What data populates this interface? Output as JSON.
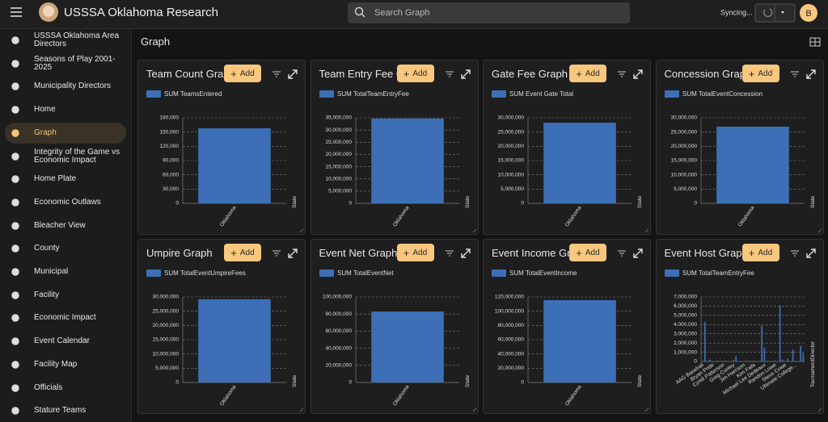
{
  "header": {
    "title": "USSSA Oklahoma Research",
    "search_placeholder": "Search Graph",
    "status": "Syncing...",
    "avatar": "B"
  },
  "sidebar": {
    "active": 4,
    "items": [
      "USSSA Oklahoma Area Directors",
      "Seasons of Play 2001-2025",
      "Municipality Directors",
      "Home",
      "Graph",
      "Integrity of the Game vs Economic Impact",
      "Home Plate",
      "Economic Outlaws",
      "Bleacher View",
      "County",
      "Municipal",
      "Facility",
      "Economic Impact",
      "Event Calendar",
      "Facility Map",
      "Officials",
      "Stature Teams"
    ]
  },
  "page": {
    "title": "Graph",
    "add_button": "Add"
  },
  "chart_data": [
    {
      "type": "bar",
      "title": "Team Count Graph",
      "categories": [
        "Oklahoma"
      ],
      "x_label": "State",
      "grid": true,
      "series": [
        {
          "name": "SUM TeamsEntered",
          "color": "#3d6fb6",
          "values": [
            158000
          ]
        }
      ],
      "ylim": [
        0,
        180000
      ],
      "yticks": [
        0,
        {
          "value": 30000,
          "label": "30,000"
        },
        {
          "value": 60000,
          "label": "60,000"
        },
        {
          "value": 90000,
          "label": "90,000"
        },
        {
          "value": 120000,
          "label": "120,000"
        },
        {
          "value": 150000,
          "label": "150,000"
        },
        {
          "value": 180000,
          "label": "180,000"
        }
      ]
    },
    {
      "type": "bar",
      "title": "Team Entry Fee Graph",
      "categories": [
        "Oklahoma"
      ],
      "x_label": "State",
      "grid": true,
      "series": [
        {
          "name": "SUM TotalTeamEntryFee",
          "color": "#3d6fb6",
          "values": [
            34700000
          ]
        }
      ],
      "ylim": [
        0,
        35000000
      ],
      "yticks": [
        0,
        {
          "value": 5000000,
          "label": "5,000,000"
        },
        {
          "value": 10000000,
          "label": "10,000,000"
        },
        {
          "value": 15000000,
          "label": "15,000,000"
        },
        {
          "value": 20000000,
          "label": "20,000,000"
        },
        {
          "value": 25000000,
          "label": "25,000,000"
        },
        {
          "value": 30000000,
          "label": "30,000,000"
        },
        {
          "value": 35000000,
          "label": "35,000,000"
        }
      ]
    },
    {
      "type": "bar",
      "title": "Gate Fee Graph",
      "categories": [
        "Oklahoma"
      ],
      "x_label": "State",
      "grid": true,
      "series": [
        {
          "name": "SUM Event Gate Total",
          "color": "#3d6fb6",
          "values": [
            28300000
          ]
        }
      ],
      "ylim": [
        0,
        30000000
      ],
      "yticks": [
        0,
        {
          "value": 5000000,
          "label": "5,000,000"
        },
        {
          "value": 10000000,
          "label": "10,000,000"
        },
        {
          "value": 15000000,
          "label": "15,000,000"
        },
        {
          "value": 20000000,
          "label": "20,000,000"
        },
        {
          "value": 25000000,
          "label": "25,000,000"
        },
        {
          "value": 30000000,
          "label": "30,000,000"
        }
      ]
    },
    {
      "type": "bar",
      "title": "Concession Graph",
      "categories": [
        "Oklahoma"
      ],
      "x_label": "State",
      "grid": true,
      "series": [
        {
          "name": "SUM TotalEventConcession",
          "color": "#3d6fb6",
          "values": [
            26900000
          ]
        }
      ],
      "ylim": [
        0,
        30000000
      ],
      "yticks": [
        0,
        {
          "value": 5000000,
          "label": "5,000,000"
        },
        {
          "value": 10000000,
          "label": "10,000,000"
        },
        {
          "value": 15000000,
          "label": "15,000,000"
        },
        {
          "value": 20000000,
          "label": "20,000,000"
        },
        {
          "value": 25000000,
          "label": "25,000,000"
        },
        {
          "value": 30000000,
          "label": "30,000,000"
        }
      ]
    },
    {
      "type": "bar",
      "title": "Umpire Graph",
      "categories": [
        "Oklahoma"
      ],
      "x_label": "State",
      "grid": true,
      "series": [
        {
          "name": "SUM TotalEventUmpireFees",
          "color": "#3d6fb6",
          "values": [
            29200000
          ]
        }
      ],
      "ylim": [
        0,
        30000000
      ],
      "yticks": [
        0,
        {
          "value": 5000000,
          "label": "5,000,000"
        },
        {
          "value": 10000000,
          "label": "10,000,000"
        },
        {
          "value": 15000000,
          "label": "15,000,000"
        },
        {
          "value": 20000000,
          "label": "20,000,000"
        },
        {
          "value": 25000000,
          "label": "25,000,000"
        },
        {
          "value": 30000000,
          "label": "30,000,000"
        }
      ]
    },
    {
      "type": "bar",
      "title": "Event Net Graph",
      "categories": [
        "Oklahoma"
      ],
      "x_label": "State",
      "grid": true,
      "series": [
        {
          "name": "SUM TotalEventNet",
          "color": "#3d6fb6",
          "values": [
            83000000
          ]
        }
      ],
      "ylim": [
        0,
        100000000
      ],
      "yticks": [
        0,
        {
          "value": 20000000,
          "label": "20,000,000"
        },
        {
          "value": 40000000,
          "label": "40,000,000"
        },
        {
          "value": 60000000,
          "label": "60,000,000"
        },
        {
          "value": 80000000,
          "label": "80,000,000"
        },
        {
          "value": 100000000,
          "label": "100,000,000"
        }
      ]
    },
    {
      "type": "bar",
      "title": "Event Income Graph",
      "categories": [
        "Oklahoma"
      ],
      "x_label": "State",
      "grid": true,
      "series": [
        {
          "name": "SUM TotalEventIncome",
          "color": "#3d6fb6",
          "values": [
            115500000
          ]
        }
      ],
      "ylim": [
        0,
        120000000
      ],
      "yticks": [
        0,
        {
          "value": 20000000,
          "label": "20,000,000"
        },
        {
          "value": 40000000,
          "label": "40,000,000"
        },
        {
          "value": 60000000,
          "label": "60,000,000"
        },
        {
          "value": 80000000,
          "label": "80,000,000"
        },
        {
          "value": 100000000,
          "label": "100,000,000"
        },
        {
          "value": 120000000,
          "label": "120,000,000"
        }
      ]
    },
    {
      "type": "bar",
      "title": "Event Host Graph",
      "x_label": "TournamentDirector",
      "grid": true,
      "categories": [
        "AAG Baseball",
        null,
        null,
        null,
        "Bryan Pride",
        null,
        null,
        null,
        "Cyndi Patterson",
        null,
        null,
        null,
        "Greg Conley",
        null,
        null,
        null,
        "Jim Harrison",
        null,
        null,
        null,
        "Kim Fails",
        null,
        null,
        null,
        "Michael Lee Dedeaux",
        null,
        null,
        null,
        "Randon Lowe",
        null,
        null,
        null,
        "Steve Cowe",
        null,
        null,
        null,
        "Ultimate College...",
        null,
        null,
        null
      ],
      "series": [
        {
          "name": "SUM TotalTeamEntryFee",
          "color": "#3d6fb6",
          "values": [
            50000,
            4300000,
            60000,
            200000,
            40000,
            30000,
            80000,
            20000,
            50000,
            100000,
            30000,
            20000,
            150000,
            600000,
            40000,
            30000,
            20000,
            60000,
            50000,
            20000,
            80000,
            30000,
            40000,
            3900000,
            1500000,
            60000,
            40000,
            20000,
            100000,
            30000,
            6100000,
            200000,
            50000,
            300000,
            40000,
            1300000,
            60000,
            30000,
            1700000,
            900000
          ]
        }
      ],
      "ylim": [
        0,
        7000000
      ],
      "yticks": [
        0,
        {
          "value": 1000000,
          "label": "1,000,000"
        },
        {
          "value": 2000000,
          "label": "2,000,000"
        },
        {
          "value": 3000000,
          "label": "3,000,000"
        },
        {
          "value": 4000000,
          "label": "4,000,000"
        },
        {
          "value": 5000000,
          "label": "5,000,000"
        },
        {
          "value": 6000000,
          "label": "6,000,000"
        },
        {
          "value": 7000000,
          "label": "7,000,000"
        }
      ]
    }
  ]
}
